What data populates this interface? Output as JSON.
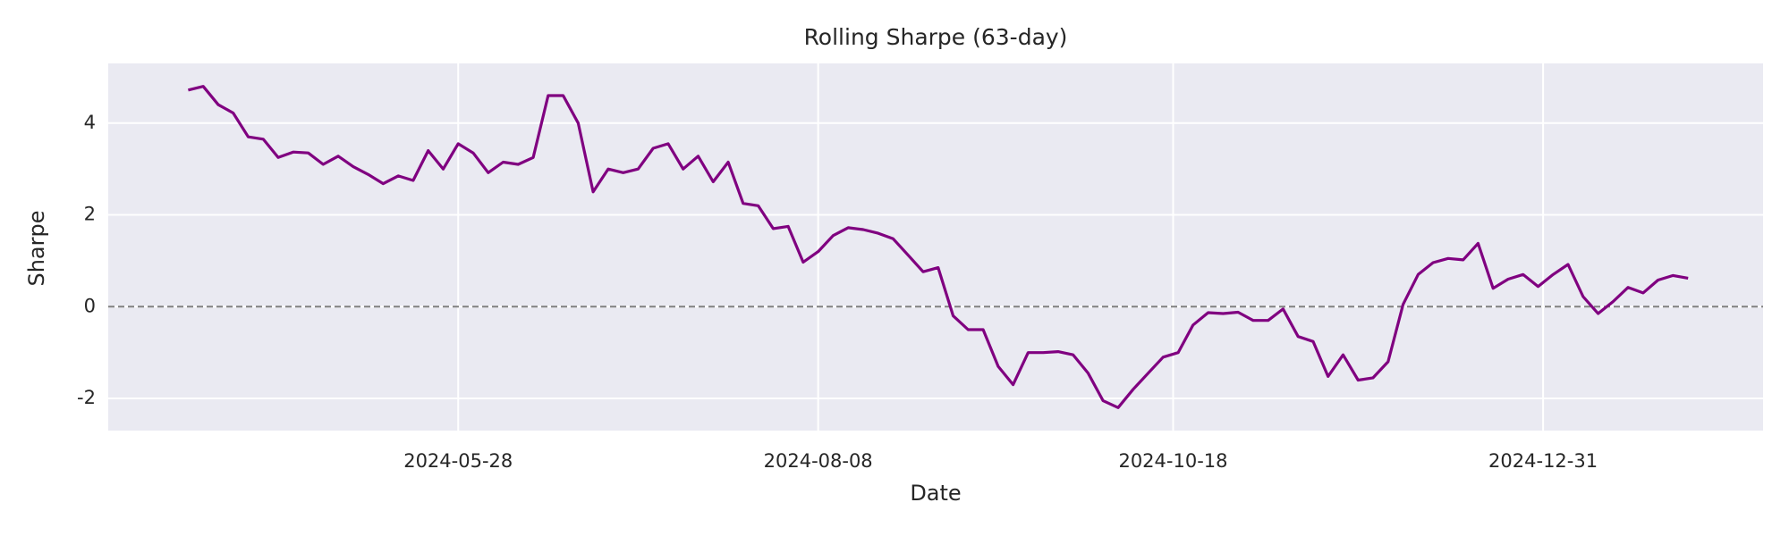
{
  "chart_data": {
    "type": "line",
    "title": "Rolling Sharpe (63-day)",
    "x_label": "Date",
    "y_label": "Sharpe",
    "x": [
      "2024-04-04",
      "2024-04-07",
      "2024-04-10",
      "2024-04-13",
      "2024-04-16",
      "2024-04-19",
      "2024-04-22",
      "2024-04-25",
      "2024-04-28",
      "2024-05-01",
      "2024-05-04",
      "2024-05-07",
      "2024-05-10",
      "2024-05-13",
      "2024-05-16",
      "2024-05-19",
      "2024-05-22",
      "2024-05-25",
      "2024-05-28",
      "2024-05-31",
      "2024-06-03",
      "2024-06-06",
      "2024-06-09",
      "2024-06-12",
      "2024-06-15",
      "2024-06-18",
      "2024-06-21",
      "2024-06-24",
      "2024-06-27",
      "2024-06-30",
      "2024-07-03",
      "2024-07-06",
      "2024-07-09",
      "2024-07-12",
      "2024-07-15",
      "2024-07-18",
      "2024-07-21",
      "2024-07-24",
      "2024-07-27",
      "2024-07-30",
      "2024-08-02",
      "2024-08-05",
      "2024-08-08",
      "2024-08-11",
      "2024-08-14",
      "2024-08-17",
      "2024-08-20",
      "2024-08-23",
      "2024-08-26",
      "2024-08-29",
      "2024-09-01",
      "2024-09-04",
      "2024-09-07",
      "2024-09-10",
      "2024-09-13",
      "2024-09-16",
      "2024-09-19",
      "2024-09-22",
      "2024-09-25",
      "2024-09-28",
      "2024-10-01",
      "2024-10-04",
      "2024-10-07",
      "2024-10-10",
      "2024-10-13",
      "2024-10-16",
      "2024-10-19",
      "2024-10-22",
      "2024-10-25",
      "2024-10-28",
      "2024-10-31",
      "2024-11-03",
      "2024-11-06",
      "2024-11-09",
      "2024-11-12",
      "2024-11-15",
      "2024-11-18",
      "2024-11-21",
      "2024-11-24",
      "2024-11-27",
      "2024-11-30",
      "2024-12-03",
      "2024-12-06",
      "2024-12-09",
      "2024-12-12",
      "2024-12-15",
      "2024-12-18",
      "2024-12-21",
      "2024-12-24",
      "2024-12-27",
      "2024-12-30",
      "2025-01-02",
      "2025-01-05",
      "2025-01-08",
      "2025-01-11",
      "2025-01-14",
      "2025-01-17",
      "2025-01-20",
      "2025-01-23",
      "2025-01-26",
      "2025-01-29"
    ],
    "values": [
      4.72,
      4.8,
      4.4,
      4.22,
      3.7,
      3.65,
      3.25,
      3.37,
      3.35,
      3.1,
      3.28,
      3.05,
      2.88,
      2.68,
      2.85,
      2.75,
      3.4,
      3.0,
      3.55,
      3.35,
      2.92,
      3.15,
      3.1,
      3.25,
      4.6,
      4.6,
      4.0,
      2.5,
      3.0,
      2.92,
      3.0,
      3.45,
      3.55,
      3.0,
      3.28,
      2.72,
      3.15,
      2.25,
      2.2,
      1.7,
      1.75,
      0.97,
      1.2,
      1.55,
      1.72,
      1.68,
      1.6,
      1.48,
      1.12,
      0.76,
      0.85,
      -0.2,
      -0.5,
      -0.5,
      -1.3,
      -1.7,
      -1.0,
      -1.0,
      -0.98,
      -1.05,
      -1.45,
      -2.05,
      -2.2,
      -1.8,
      -1.45,
      -1.1,
      -1.0,
      -0.4,
      -0.13,
      -0.15,
      -0.12,
      -0.3,
      -0.3,
      -0.05,
      -0.65,
      -0.76,
      -1.52,
      -1.05,
      -1.6,
      -1.55,
      -1.2,
      0.05,
      0.7,
      0.96,
      1.05,
      1.02,
      1.38,
      0.4,
      0.6,
      0.7,
      0.44,
      0.7,
      0.92,
      0.22,
      -0.15,
      0.11,
      0.42,
      0.3,
      0.58,
      0.68,
      0.62
    ],
    "color": "#800080",
    "xlim": [
      "2024-03-19",
      "2025-02-13"
    ],
    "xticks": [
      "2024-05-28",
      "2024-08-08",
      "2024-10-18",
      "2024-12-31"
    ],
    "ylim": [
      -2.7,
      5.3
    ],
    "yticks": [
      -2,
      0,
      2,
      4
    ],
    "reference_line": 0,
    "grid": true
  }
}
